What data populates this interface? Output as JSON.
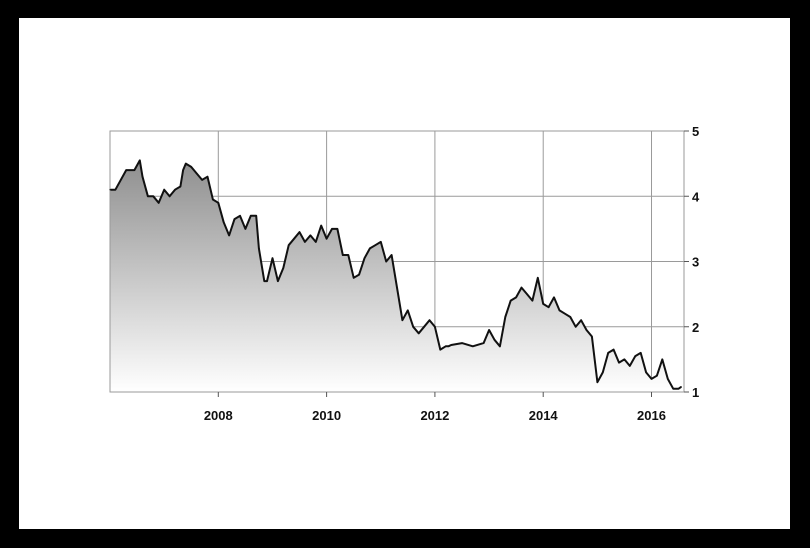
{
  "chart_data": {
    "type": "area",
    "title": "",
    "xlabel": "",
    "ylabel": "",
    "xlim": [
      2006.0,
      2016.6
    ],
    "ylim": [
      1,
      5
    ],
    "x_ticks": [
      "2008",
      "2010",
      "2012",
      "2014",
      "2016"
    ],
    "y_ticks": [
      "1",
      "2",
      "3",
      "4",
      "5"
    ],
    "grid": true,
    "y_axis_position": "right",
    "colors": {
      "line": "#111111",
      "fill_top": "#8f8f8f",
      "fill_bottom": "#ffffff",
      "grid": "#9a9a9a",
      "frame": "#000000",
      "background": "#ffffff"
    },
    "series": [
      {
        "x": [
          2006.0,
          2006.1,
          2006.3,
          2006.45,
          2006.55,
          2006.6,
          2006.7,
          2006.8,
          2006.9,
          2007.0,
          2007.1,
          2007.2,
          2007.3,
          2007.35,
          2007.4,
          2007.5,
          2007.6,
          2007.7,
          2007.8,
          2007.9,
          2008.0,
          2008.1,
          2008.2,
          2008.3,
          2008.4,
          2008.5,
          2008.6,
          2008.7,
          2008.75,
          2008.85,
          2008.9,
          2009.0,
          2009.1,
          2009.2,
          2009.3,
          2009.4,
          2009.5,
          2009.6,
          2009.7,
          2009.8,
          2009.9,
          2010.0,
          2010.1,
          2010.2,
          2010.3,
          2010.4,
          2010.5,
          2010.6,
          2010.7,
          2010.8,
          2010.9,
          2011.0,
          2011.1,
          2011.2,
          2011.3,
          2011.4,
          2011.5,
          2011.6,
          2011.7,
          2011.8,
          2011.9,
          2012.0,
          2012.1,
          2012.2,
          2012.25,
          2012.3,
          2012.5,
          2012.7,
          2012.9,
          2013.0,
          2013.1,
          2013.2,
          2013.3,
          2013.4,
          2013.5,
          2013.6,
          2013.7,
          2013.8,
          2013.9,
          2014.0,
          2014.1,
          2014.2,
          2014.3,
          2014.4,
          2014.5,
          2014.6,
          2014.7,
          2014.8,
          2014.9,
          2015.0,
          2015.1,
          2015.2,
          2015.3,
          2015.4,
          2015.5,
          2015.6,
          2015.7,
          2015.8,
          2015.9,
          2016.0,
          2016.1,
          2016.2,
          2016.3,
          2016.4,
          2016.5,
          2016.55
        ],
        "y": [
          4.1,
          4.1,
          4.4,
          4.4,
          4.55,
          4.3,
          4.0,
          4.0,
          3.9,
          4.1,
          4.0,
          4.1,
          4.15,
          4.4,
          4.5,
          4.45,
          4.35,
          4.25,
          4.3,
          3.95,
          3.9,
          3.6,
          3.4,
          3.65,
          3.7,
          3.5,
          3.7,
          3.7,
          3.2,
          2.7,
          2.7,
          3.05,
          2.7,
          2.9,
          3.25,
          3.35,
          3.45,
          3.3,
          3.4,
          3.3,
          3.55,
          3.35,
          3.5,
          3.5,
          3.1,
          3.1,
          2.75,
          2.8,
          3.05,
          3.2,
          3.25,
          3.3,
          3.0,
          3.1,
          2.6,
          2.1,
          2.25,
          2.0,
          1.9,
          2.0,
          2.1,
          2.0,
          1.65,
          1.7,
          1.7,
          1.72,
          1.75,
          1.7,
          1.75,
          1.95,
          1.8,
          1.7,
          2.15,
          2.4,
          2.45,
          2.6,
          2.5,
          2.4,
          2.75,
          2.35,
          2.3,
          2.45,
          2.25,
          2.2,
          2.15,
          2.0,
          2.1,
          1.95,
          1.85,
          1.15,
          1.3,
          1.6,
          1.65,
          1.45,
          1.5,
          1.4,
          1.55,
          1.6,
          1.3,
          1.2,
          1.25,
          1.5,
          1.2,
          1.05,
          1.05,
          1.08
        ]
      }
    ]
  }
}
